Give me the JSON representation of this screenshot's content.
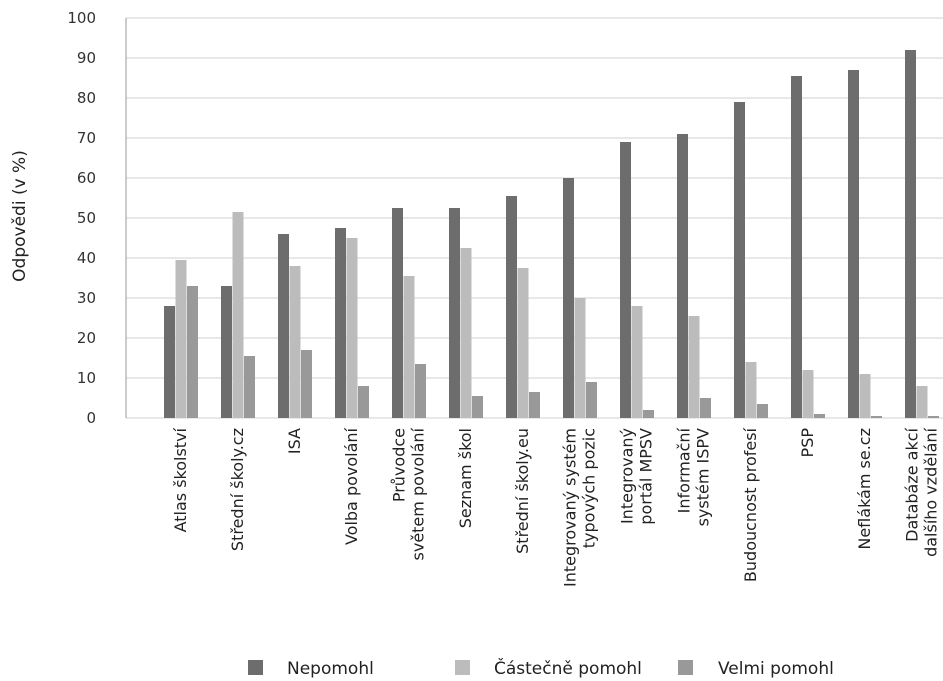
{
  "chart_data": {
    "type": "bar",
    "ylabel": "Odpovědi (v %)",
    "ylim": [
      0,
      100
    ],
    "yticks": [
      0,
      10,
      20,
      30,
      40,
      50,
      60,
      70,
      80,
      90,
      100
    ],
    "grid": true,
    "legend_position": "bottom",
    "categories": [
      [
        "Atlas školství"
      ],
      [
        "Střední školy.cz"
      ],
      [
        "ISA"
      ],
      [
        "Volba povolání"
      ],
      [
        "Průvodce",
        "světem povolání"
      ],
      [
        "Seznam škol"
      ],
      [
        "Střední školy.eu"
      ],
      [
        "Integrovaný systém",
        "typových pozic"
      ],
      [
        "Integrovaný",
        "portál MPSV"
      ],
      [
        "Informační",
        "systém ISPV"
      ],
      [
        "Budoucnost profesí"
      ],
      [
        "PSP"
      ],
      [
        "Neflákám se.cz"
      ],
      [
        "Databáze akcí",
        "dalšího vzdělání"
      ]
    ],
    "series": [
      {
        "name": "Nepomohl",
        "color": "#6d6d6d",
        "values": [
          28,
          33,
          46,
          47.5,
          52.5,
          52.5,
          55.5,
          60,
          69,
          71,
          79,
          85.5,
          87,
          92
        ]
      },
      {
        "name": "Částečně pomohl",
        "color": "#bcbcbc",
        "values": [
          39.5,
          51.5,
          38,
          45,
          35.5,
          42.5,
          37.5,
          30,
          28,
          25.5,
          14,
          12,
          11,
          8
        ]
      },
      {
        "name": "Velmi pomohl",
        "color": "#999999",
        "values": [
          33,
          15.5,
          17,
          8,
          13.5,
          5.5,
          6.5,
          9,
          2,
          5,
          3.5,
          1,
          0.5,
          0.5
        ]
      }
    ]
  }
}
